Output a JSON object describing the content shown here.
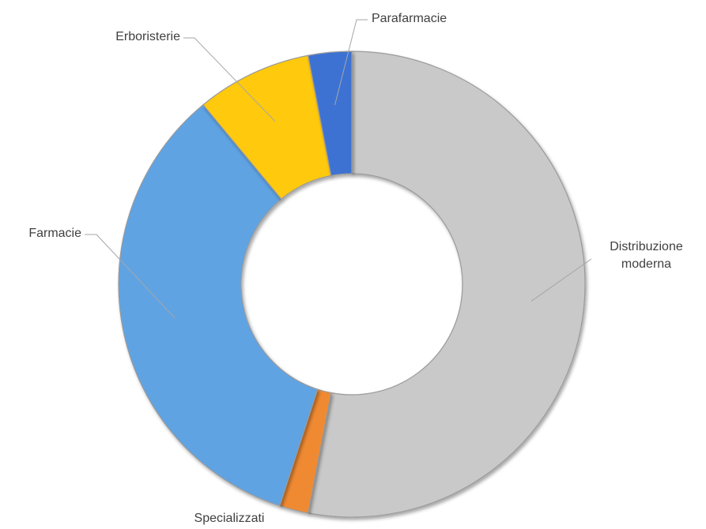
{
  "chart_data": {
    "type": "donut",
    "categories": [
      "Distribuzione moderna",
      "Specializzati",
      "Farmacie",
      "Erboristerie",
      "Parafarmacie"
    ],
    "values": [
      53,
      2,
      34,
      8,
      3
    ],
    "colors": [
      "#c9c9c9",
      "#f08a30",
      "#5fa3e3",
      "#ffc910",
      "#3c72d3"
    ]
  }
}
